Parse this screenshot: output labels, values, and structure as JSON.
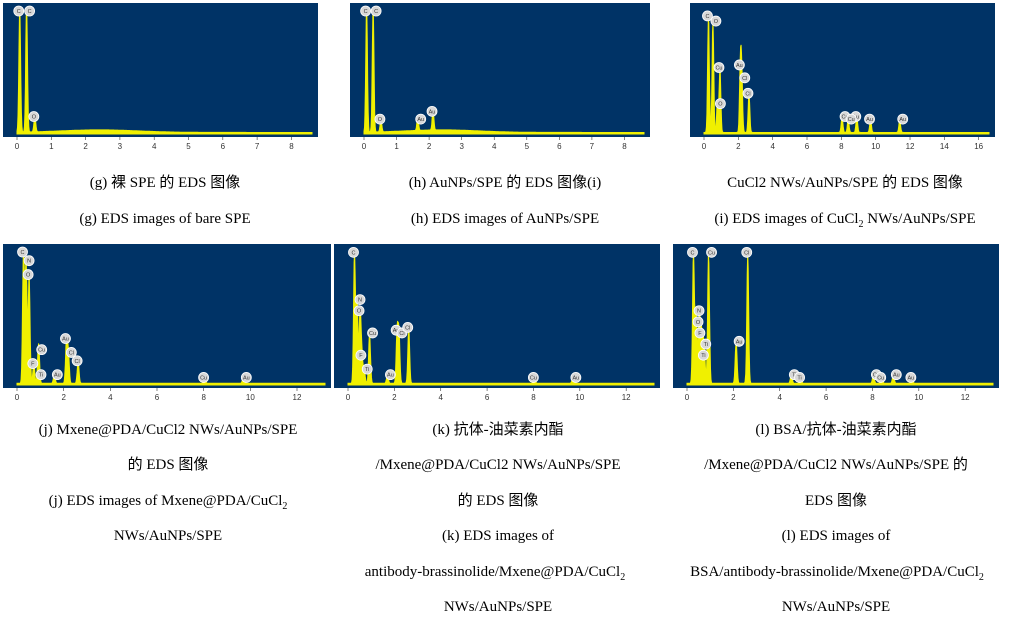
{
  "chart_data": [
    {
      "type": "line",
      "id": "g",
      "xlim": [
        0,
        8.6
      ],
      "ticks": [
        "0",
        "1",
        "2",
        "3",
        "4",
        "5",
        "6",
        "7",
        "8"
      ],
      "peaks": [
        {
          "x": 0.08,
          "h": 0.98,
          "label": "C"
        },
        {
          "x": 0.28,
          "h": 0.98,
          "label": "C"
        },
        {
          "x": 0.52,
          "h": 0.12,
          "label": "O"
        }
      ],
      "baseline_hump": true,
      "caption_cn": "(g)  裸 SPE 的 EDS 图像",
      "caption_en": "(g) EDS images of bare SPE"
    },
    {
      "type": "line",
      "id": "h",
      "xlim": [
        0,
        8.6
      ],
      "ticks": [
        "0",
        "1",
        "2",
        "3",
        "4",
        "5",
        "6",
        "7",
        "8"
      ],
      "peaks": [
        {
          "x": 0.08,
          "h": 0.98,
          "label": "C"
        },
        {
          "x": 0.28,
          "h": 0.98,
          "label": "C"
        },
        {
          "x": 0.52,
          "h": 0.1,
          "label": "O"
        },
        {
          "x": 1.65,
          "h": 0.1,
          "label": "Au"
        },
        {
          "x": 2.12,
          "h": 0.16,
          "label": "Au"
        }
      ],
      "baseline_hump": true,
      "caption_cn": "(h) AuNPs/SPE 的 EDS 图像(i)",
      "caption_en": "(h) EDS images of AuNPs/SPE"
    },
    {
      "type": "line",
      "id": "i",
      "xlim": [
        0,
        16.6
      ],
      "ticks": [
        "0",
        "2",
        "4",
        "6",
        "8",
        "10",
        "12",
        "14",
        "16"
      ],
      "peaks": [
        {
          "x": 0.26,
          "h": 0.9,
          "label": "C"
        },
        {
          "x": 0.52,
          "h": 0.86,
          "label": "O"
        },
        {
          "x": 0.93,
          "h": 0.5,
          "label": "Cu"
        },
        {
          "x": 0.78,
          "h": 0.22,
          "label": "O"
        },
        {
          "x": 2.12,
          "h": 0.52,
          "label": "Au"
        },
        {
          "x": 2.2,
          "h": 0.42,
          "label": "Cl"
        },
        {
          "x": 2.62,
          "h": 0.3,
          "label": "Cl"
        },
        {
          "x": 8.04,
          "h": 0.12,
          "label": "Cu"
        },
        {
          "x": 8.9,
          "h": 0.12,
          "label": "Au"
        },
        {
          "x": 8.4,
          "h": 0.1,
          "label": "Cu"
        },
        {
          "x": 9.7,
          "h": 0.1,
          "label": "Au"
        },
        {
          "x": 11.4,
          "h": 0.1,
          "label": "Au"
        }
      ],
      "caption_cn": "CuCl2 NWs/AuNPs/SPE 的 EDS 图像",
      "caption_en_pre": "(i) EDS images of CuCl",
      "caption_en_sub": "2",
      "caption_en_post": " NWs/AuNPs/SPE"
    },
    {
      "type": "line",
      "id": "j",
      "xlim": [
        0,
        13.2
      ],
      "ticks": [
        "0",
        "2",
        "4",
        "6",
        "8",
        "10",
        "12"
      ],
      "peaks": [
        {
          "x": 0.28,
          "h": 0.98,
          "label": "C"
        },
        {
          "x": 0.39,
          "h": 0.88,
          "label": "N"
        },
        {
          "x": 0.52,
          "h": 0.78,
          "label": "O"
        },
        {
          "x": 0.93,
          "h": 0.24,
          "label": "Cu"
        },
        {
          "x": 0.72,
          "h": 0.14,
          "label": "F"
        },
        {
          "x": 0.9,
          "h": 0.06,
          "label": "Ti"
        },
        {
          "x": 2.12,
          "h": 0.32,
          "label": "Au"
        },
        {
          "x": 2.2,
          "h": 0.22,
          "label": "Cl"
        },
        {
          "x": 2.62,
          "h": 0.16,
          "label": "Cl"
        },
        {
          "x": 1.6,
          "h": 0.06,
          "label": "Au"
        },
        {
          "x": 8.04,
          "h": 0.04,
          "label": "Cu"
        },
        {
          "x": 9.7,
          "h": 0.04,
          "label": "Au"
        }
      ],
      "caption_cn_1": "(j) Mxene@PDA/CuCl2 NWs/AuNPs/SPE",
      "caption_cn_2": "的 EDS 图像",
      "caption_en_1_pre": "(j) EDS images of Mxene@PDA/CuCl",
      "caption_en_1_sub": "2",
      "caption_en_2": "NWs/AuNPs/SPE"
    },
    {
      "type": "line",
      "id": "k",
      "xlim": [
        0,
        13.2
      ],
      "ticks": [
        "0",
        "2",
        "4",
        "6",
        "8",
        "10",
        "12"
      ],
      "peaks": [
        {
          "x": 0.28,
          "h": 0.94,
          "label": "C"
        },
        {
          "x": 0.39,
          "h": 0.6,
          "label": "N"
        },
        {
          "x": 0.52,
          "h": 0.52,
          "label": "O"
        },
        {
          "x": 0.93,
          "h": 0.36,
          "label": "Cu"
        },
        {
          "x": 0.6,
          "h": 0.2,
          "label": "F"
        },
        {
          "x": 0.7,
          "h": 0.1,
          "label": "Ti"
        },
        {
          "x": 2.12,
          "h": 0.38,
          "label": "Au"
        },
        {
          "x": 2.2,
          "h": 0.36,
          "label": "Cl"
        },
        {
          "x": 2.62,
          "h": 0.4,
          "label": "Cl"
        },
        {
          "x": 1.7,
          "h": 0.06,
          "label": "Au"
        },
        {
          "x": 8.04,
          "h": 0.04,
          "label": "Cu"
        },
        {
          "x": 9.7,
          "h": 0.04,
          "label": "Au"
        }
      ],
      "caption_cn_1": "(k)  抗体-油菜素内酯",
      "caption_cn_2": "/Mxene@PDA/CuCl2  NWs/AuNPs/SPE",
      "caption_cn_3": "的 EDS 图像",
      "caption_en_1": "(k) EDS images of",
      "caption_en_2_pre": "antibody-brassinolide/Mxene@PDA/CuCl",
      "caption_en_2_sub": "2",
      "caption_en_3": "NWs/AuNPs/SPE"
    },
    {
      "type": "line",
      "id": "l",
      "xlim": [
        0,
        13.2
      ],
      "ticks": [
        "0",
        "2",
        "4",
        "6",
        "8",
        "10",
        "12"
      ],
      "peaks": [
        {
          "x": 0.28,
          "h": 0.94,
          "label": "C"
        },
        {
          "x": 0.39,
          "h": 0.52,
          "label": "N"
        },
        {
          "x": 0.52,
          "h": 0.44,
          "label": "O"
        },
        {
          "x": 0.93,
          "h": 0.94,
          "label": "Cu"
        },
        {
          "x": 0.6,
          "h": 0.36,
          "label": "F"
        },
        {
          "x": 0.68,
          "h": 0.28,
          "label": "Ti"
        },
        {
          "x": 0.75,
          "h": 0.2,
          "label": "Ti"
        },
        {
          "x": 2.12,
          "h": 0.3,
          "label": "Au"
        },
        {
          "x": 2.62,
          "h": 0.94,
          "label": "Cl"
        },
        {
          "x": 4.5,
          "h": 0.06,
          "label": "Ti"
        },
        {
          "x": 4.9,
          "h": 0.04,
          "label": "Ti"
        },
        {
          "x": 8.04,
          "h": 0.06,
          "label": "Cu"
        },
        {
          "x": 8.4,
          "h": 0.04,
          "label": "Cu"
        },
        {
          "x": 8.9,
          "h": 0.06,
          "label": "Au"
        },
        {
          "x": 9.7,
          "h": 0.04,
          "label": "Au"
        }
      ],
      "caption_cn_1": "(l) BSA/抗体-油菜素内酯",
      "caption_cn_2": "/Mxene@PDA/CuCl2  NWs/AuNPs/SPE 的",
      "caption_cn_3": "EDS 图像",
      "caption_en_1": "(l) EDS images of",
      "caption_en_2_pre": "BSA/antibody-brassinolide/Mxene@PDA/CuCl",
      "caption_en_2_sub": "2",
      "caption_en_3": "NWs/AuNPs/SPE"
    }
  ],
  "colors": {
    "background": "#003366",
    "spectrum": "#f0f000",
    "axis_text": "#333333",
    "marker_fill": "#d8d8d8"
  }
}
